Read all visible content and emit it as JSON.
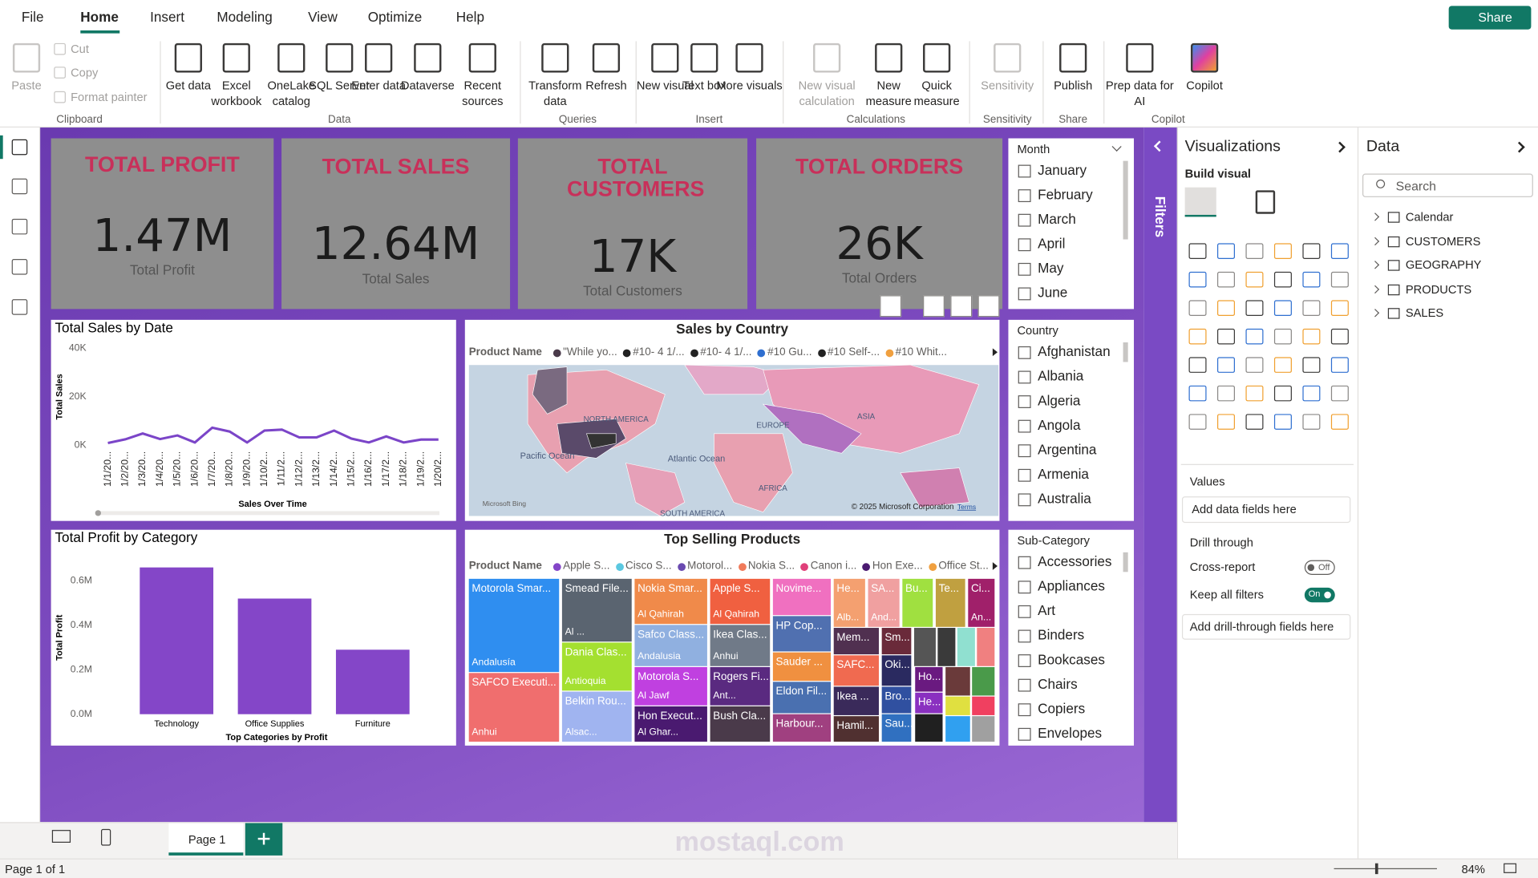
{
  "ribbon": {
    "tabs": [
      "File",
      "Home",
      "Insert",
      "Modeling",
      "View",
      "Optimize",
      "Help"
    ],
    "share": "Share",
    "buttons": [
      "Paste",
      "Cut",
      "Copy",
      "Format painter",
      "Get data",
      "Excel workbook",
      "OneLake catalog",
      "SQL Server",
      "Enter data",
      "Dataverse",
      "Recent sources",
      "Transform data",
      "Refresh",
      "New visual",
      "Text box",
      "More visuals",
      "New visual calculation",
      "New measure",
      "Quick measure",
      "Sensitivity",
      "Publish",
      "Prep data for AI",
      "Copilot"
    ],
    "groups": [
      "Clipboard",
      "Data",
      "Queries",
      "Insert",
      "Calculations",
      "Sensitivity",
      "Share",
      "Copilot"
    ]
  },
  "cards": [
    {
      "title": "TOTAL PROFIT",
      "value": "1.47M",
      "label": "Total Profit"
    },
    {
      "title": "TOTAL SALES",
      "value": "12.64M",
      "label": "Total Sales"
    },
    {
      "title": "TOTAL CUSTOMERS",
      "value": "17K",
      "label": "Total Customers"
    },
    {
      "title": "TOTAL ORDERS",
      "value": "26K",
      "label": "Total Orders"
    }
  ],
  "month_slicer": {
    "title": "Month",
    "items": [
      "January",
      "February",
      "March",
      "April",
      "May",
      "June"
    ]
  },
  "country_slicer": {
    "title": "Country",
    "items": [
      "Afghanistan",
      "Albania",
      "Algeria",
      "Angola",
      "Argentina",
      "Armenia",
      "Australia"
    ]
  },
  "subcategory_slicer": {
    "title": "Sub-Category",
    "items": [
      "Accessories",
      "Appliances",
      "Art",
      "Binders",
      "Bookcases",
      "Chairs",
      "Copiers",
      "Envelopes"
    ]
  },
  "line_chart": {
    "type": "line",
    "title": "Total Sales by Date",
    "x_label": "Sales Over Time",
    "y_label": "Total Sales",
    "categories": [
      "1/1/20...",
      "1/2/20...",
      "1/3/20...",
      "1/4/20...",
      "1/5/20...",
      "1/6/20...",
      "1/7/20...",
      "1/8/20...",
      "1/9/20...",
      "1/10/2...",
      "1/11/2...",
      "1/12/2...",
      "1/13/2...",
      "1/14/2...",
      "1/15/2...",
      "1/16/2...",
      "1/17/2...",
      "1/18/2...",
      "1/19/2...",
      "1/20/2..."
    ],
    "values": [
      1000,
      2500,
      4900,
      2600,
      4100,
      1200,
      7300,
      5700,
      1200,
      6100,
      6500,
      3300,
      3300,
      6100,
      2800,
      1200,
      3700,
      1200,
      2400,
      2400
    ],
    "color": "#7b45c8",
    "ylim": [
      0,
      40000
    ],
    "yticks": [
      {
        "value": 0,
        "label": "0K"
      },
      {
        "value": 20000,
        "label": "20K"
      },
      {
        "value": 40000,
        "label": "40K"
      }
    ]
  },
  "map": {
    "title": "Sales by Country",
    "legend_title": "Product Name",
    "legend": [
      {
        "name": "\"While yo...",
        "color": "#4a3a4a"
      },
      {
        "name": "#10- 4 1/...",
        "color": "#222222"
      },
      {
        "name": "#10- 4 1/...",
        "color": "#222222"
      },
      {
        "name": "#10 Gu...",
        "color": "#2f6fd0"
      },
      {
        "name": "#10 Self-...",
        "color": "#222222"
      },
      {
        "name": "#10 Whit...",
        "color": "#f0a040"
      }
    ],
    "labels": [
      "NORTH AMERICA",
      "EUROPE",
      "ASIA",
      "Pacific Ocean",
      "Atlantic Ocean",
      "AFRICA",
      "SOUTH AMERICA"
    ],
    "attribution": "Microsoft Bing",
    "copyright": "© 2025 Microsoft Corporation",
    "terms": "Terms"
  },
  "bar_chart": {
    "type": "bar",
    "title": "Total Profit by Category",
    "x_label": "Top Categories by Profit",
    "y_label": "Total Profit",
    "categories": [
      "Technology",
      "Office Supplies",
      "Furniture"
    ],
    "values": [
      660000,
      520000,
      290000
    ],
    "color": "#8446c8",
    "ylim": [
      0,
      700000
    ],
    "yticks": [
      {
        "value": 0,
        "label": "0.0M"
      },
      {
        "value": 200000,
        "label": "0.2M"
      },
      {
        "value": 400000,
        "label": "0.4M"
      },
      {
        "value": 600000,
        "label": "0.6M"
      }
    ]
  },
  "treemap": {
    "title": "Top Selling Products",
    "legend_title": "Product Name",
    "legend": [
      {
        "name": "Apple S...",
        "color": "#8446c8"
      },
      {
        "name": "Cisco S...",
        "color": "#5bc8e0"
      },
      {
        "name": "Motorol...",
        "color": "#6a4ab0"
      },
      {
        "name": "Nokia S...",
        "color": "#f07a5a"
      },
      {
        "name": "Canon i...",
        "color": "#e0407a"
      },
      {
        "name": "Hon Exe...",
        "color": "#4a1a70"
      },
      {
        "name": "Office St...",
        "color": "#f0a040"
      }
    ],
    "tiles": [
      {
        "label": "Motorola Smar...",
        "sub": "Andalusía",
        "color": "#2f8ef0"
      },
      {
        "label": "SAFCO Executi...",
        "sub": "Anhui",
        "color": "#f06e6e"
      },
      {
        "label": "Smead File...",
        "sub": "Al ...",
        "color": "#5a6470"
      },
      {
        "label": "Dania Clas...",
        "sub": "Antioquia",
        "color": "#a4e030"
      },
      {
        "label": "Belkin Rou...",
        "sub": "Alsac...",
        "color": "#a0b4f0"
      },
      {
        "label": "Nokia Smar...",
        "sub": "Al Qahirah",
        "color": "#f08a4a"
      },
      {
        "label": "Safco Class...",
        "sub": "Andalusia",
        "color": "#90b0e0"
      },
      {
        "label": "Motorola S...",
        "sub": "Al Jawf",
        "color": "#c040e0"
      },
      {
        "label": "Hon Execut...",
        "sub": "Al Ghar...",
        "color": "#4a1a70"
      },
      {
        "label": "Apple S...",
        "sub": "Al Qahirah",
        "color": "#f06040"
      },
      {
        "label": "Ikea Clas...",
        "sub": "Anhui",
        "color": "#707a88"
      },
      {
        "label": "Rogers Fi...",
        "sub": "Ant...",
        "color": "#5a2a80"
      },
      {
        "label": "Bush Cla...",
        "color": "#4a3a4a"
      },
      {
        "label": "Novime...",
        "color": "#f070c0"
      },
      {
        "label": "HP Cop...",
        "color": "#5070b0"
      },
      {
        "label": "Sauder ...",
        "color": "#f09040"
      },
      {
        "label": "Eldon Fil...",
        "color": "#4a70b0"
      },
      {
        "label": "Harbour...",
        "color": "#a04080"
      },
      {
        "label": "He...",
        "sub": "Alb...",
        "color": "#f4a070"
      },
      {
        "label": "SA...",
        "sub": "And...",
        "color": "#f0a0a0"
      },
      {
        "label": "Bu...",
        "color": "#a0e040"
      },
      {
        "label": "Te...",
        "color": "#c0a040"
      },
      {
        "label": "Ci...",
        "sub": "An...",
        "color": "#a0206a"
      },
      {
        "label": "Mem...",
        "color": "#503050"
      },
      {
        "label": "Sm...",
        "color": "#6a2a3a"
      },
      {
        "label": "SAFC...",
        "color": "#f06a50"
      },
      {
        "label": "Oki...",
        "color": "#2a2a60"
      },
      {
        "label": "Ikea ...",
        "color": "#3a2a5a"
      },
      {
        "label": "Bro...",
        "color": "#3050a0"
      },
      {
        "label": "Hamil...",
        "color": "#503030"
      },
      {
        "label": "Sau...",
        "color": "#3070c0"
      },
      {
        "label": "Ho...",
        "color": "#6a1a80"
      },
      {
        "label": "He...",
        "color": "#8a30c0"
      }
    ]
  },
  "filters": "Filters",
  "visualizations": {
    "title": "Visualizations",
    "build": "Build visual",
    "values": "Values",
    "add_fields": "Add data fields here",
    "drill": "Drill through",
    "cross": "Cross-report",
    "off": "Off",
    "keep": "Keep all filters",
    "on": "On",
    "add_drill": "Add drill-through fields here"
  },
  "data_pane": {
    "title": "Data",
    "search": "Search",
    "tables": [
      "Calendar",
      "CUSTOMERS",
      "GEOGRAPHY",
      "PRODUCTS",
      "SALES"
    ]
  },
  "footer": {
    "page": "Page 1",
    "status": "Page 1 of 1",
    "zoom": "84%"
  },
  "watermark": "mostaql.com"
}
